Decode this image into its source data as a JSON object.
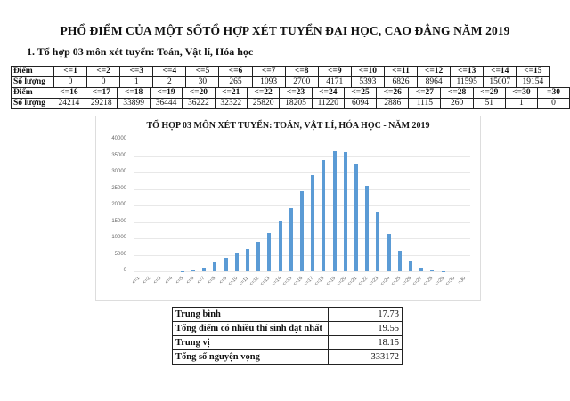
{
  "header": {
    "title": "PHỔ ĐIỂM CỦA MỘT SỐTỔ HỢP XÉT TUYỂN ĐẠI HỌC, CAO ĐẲNG NĂM 2019",
    "subtitle": "1. Tổ hợp 03 môn xét tuyển: Toán, Vật lí, Hóa học"
  },
  "table": {
    "row_label_score": "Điểm",
    "row_label_count": "Số lượng",
    "part1": {
      "scores": [
        "<=1",
        "<=2",
        "<=3",
        "<=4",
        "<=5",
        "<=6",
        "<=7",
        "<=8",
        "<=9",
        "<=10",
        "<=11",
        "<=12",
        "<=13",
        "<=14",
        "<=15"
      ],
      "counts": [
        "0",
        "0",
        "1",
        "2",
        "30",
        "265",
        "1093",
        "2700",
        "4171",
        "5393",
        "6826",
        "8964",
        "11595",
        "15007",
        "19154"
      ]
    },
    "part2": {
      "scores": [
        "<=16",
        "<=17",
        "<=18",
        "<=19",
        "<=20",
        "<=21",
        "<=22",
        "<=23",
        "<=24",
        "<=25",
        "<=26",
        "<=27",
        "<=28",
        "<=29",
        "<=30",
        "=30"
      ],
      "counts": [
        "24214",
        "29218",
        "33899",
        "36444",
        "36222",
        "32322",
        "25820",
        "18205",
        "11220",
        "6094",
        "2886",
        "1115",
        "260",
        "51",
        "1",
        "0"
      ]
    }
  },
  "chart_data": {
    "type": "bar",
    "title": "TỔ HỢP 03 MÔN XÉT TUYỂN: TOÁN, VẬT LÍ, HÓA HỌC - NĂM 2019",
    "xlabel": "",
    "ylabel": "",
    "ylim": [
      0,
      40000
    ],
    "yticks": [
      "0",
      "5000",
      "10000",
      "15000",
      "20000",
      "25000",
      "30000",
      "35000",
      "40000"
    ],
    "grid": true,
    "legend": null,
    "bar_color": "#5b9bd5",
    "categories": [
      "<=1",
      "<=2",
      "<=3",
      "<=4",
      "<=5",
      "<=6",
      "<=7",
      "<=8",
      "<=9",
      "<=10",
      "<=11",
      "<=12",
      "<=13",
      "<=14",
      "<=15",
      "<=16",
      "<=17",
      "<=18",
      "<=19",
      "<=20",
      "<=21",
      "<=22",
      "<=23",
      "<=24",
      "<=25",
      "<=26",
      "<=27",
      "<=28",
      "<=29",
      "<=30",
      "=30"
    ],
    "values": [
      0,
      0,
      1,
      2,
      30,
      265,
      1093,
      2700,
      4171,
      5393,
      6826,
      8964,
      11595,
      15007,
      19154,
      24214,
      29218,
      33899,
      36444,
      36222,
      32322,
      25820,
      18205,
      11220,
      6094,
      2886,
      1115,
      260,
      51,
      1,
      0
    ]
  },
  "stats": [
    {
      "label": "Trung bình",
      "value": "17.73"
    },
    {
      "label": "Tổng điểm có nhiều thí sinh đạt nhất",
      "value": "19.55"
    },
    {
      "label": "Trung vị",
      "value": "18.15"
    },
    {
      "label": "Tổng số nguyện vọng",
      "value": "333172"
    }
  ]
}
